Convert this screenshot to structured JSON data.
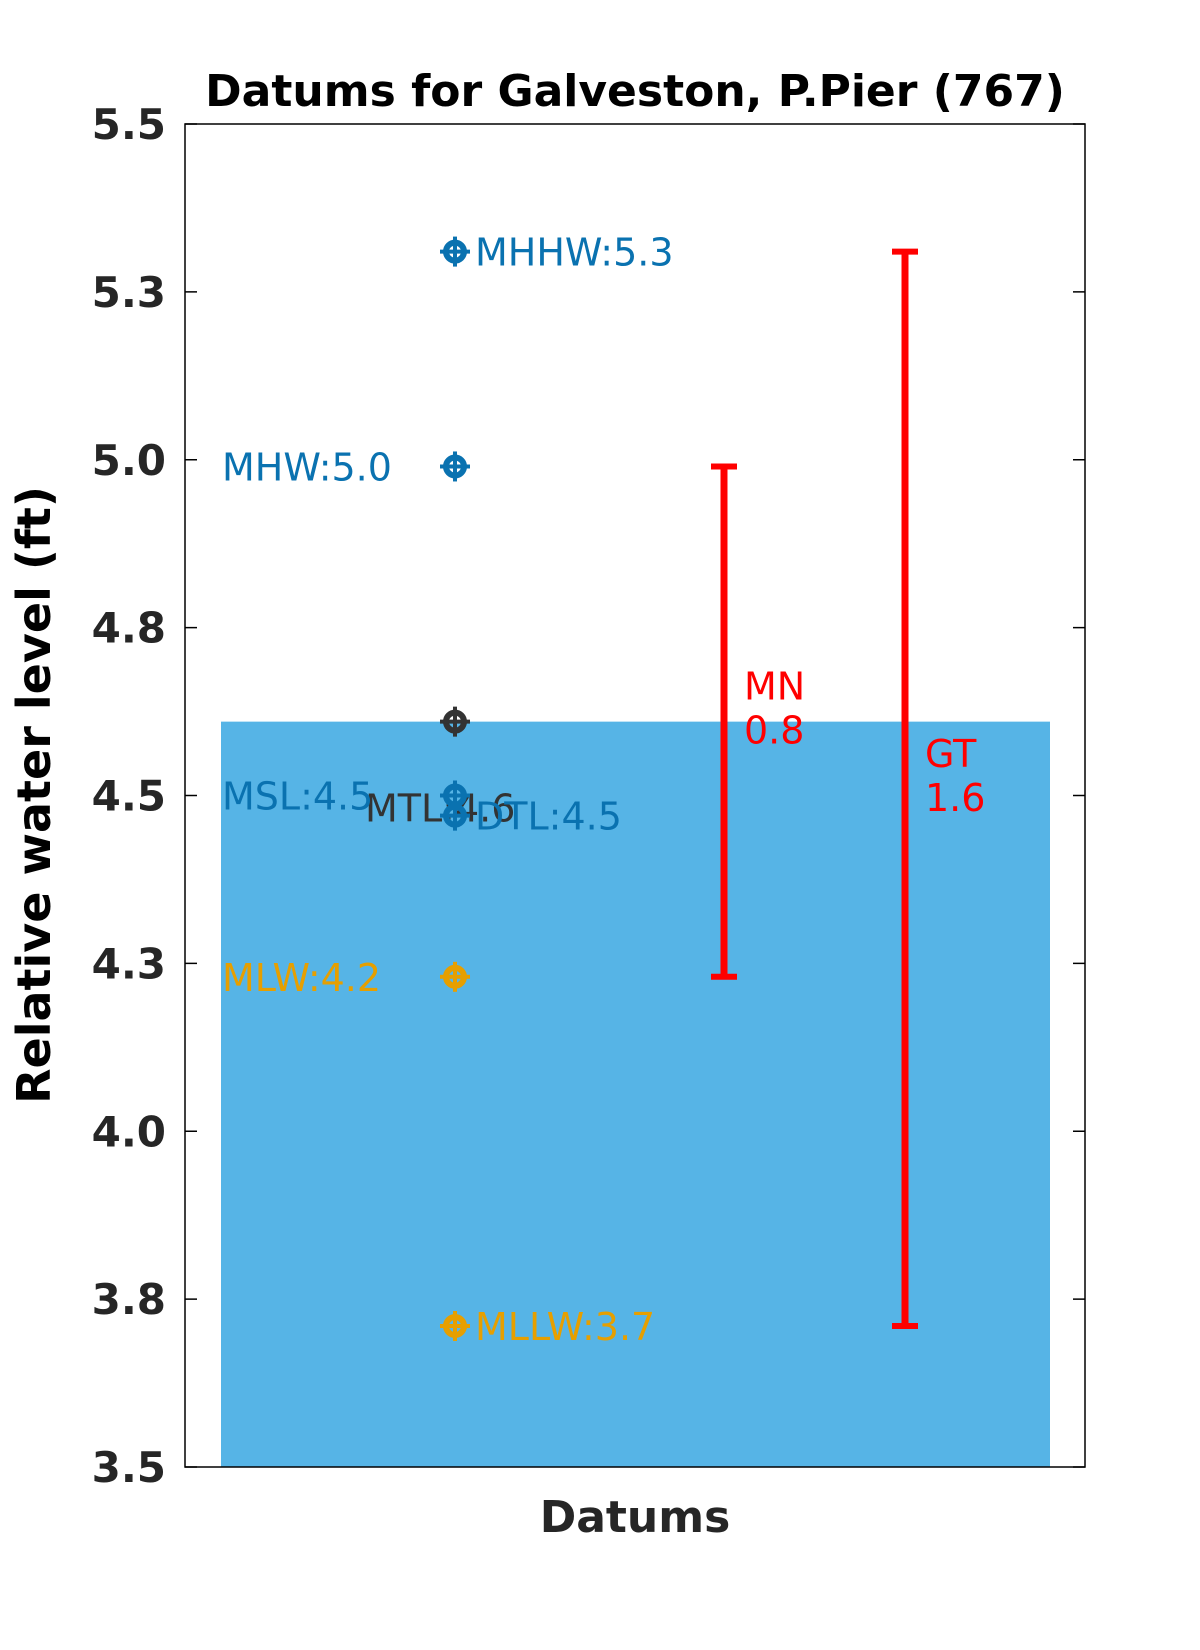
{
  "chart_data": {
    "type": "bar",
    "title": "Datums for Galveston, P.Pier (767)",
    "xlabel": "Datums",
    "ylabel": "Relative water level (ft)",
    "ylim": [
      3.5,
      5.5
    ],
    "yticks": [
      3.5,
      3.75,
      4.0,
      4.25,
      4.5,
      4.75,
      5.0,
      5.25,
      5.5
    ],
    "ytick_labels": [
      "3.5",
      "3.8",
      "4.0",
      "4.3",
      "4.5",
      "4.8",
      "5.0",
      "5.3",
      "5.5"
    ],
    "grid": false,
    "bar": {
      "value": 4.61,
      "color": "#56b4e6"
    },
    "datums": [
      {
        "label": "MHHW:5.3",
        "value": 5.31,
        "color": "#0a72b0",
        "label_side": "right"
      },
      {
        "label": "MHW:5.0",
        "value": 4.99,
        "color": "#0a72b0",
        "label_side": "left"
      },
      {
        "label": "MTL:4.6",
        "value": 4.61,
        "color": "#333333",
        "label_side": "center"
      },
      {
        "label": "MSL:4.5",
        "value": 4.5,
        "color": "#0a72b0",
        "label_side": "left"
      },
      {
        "label": "DTL:4.5",
        "value": 4.47,
        "color": "#0a72b0",
        "label_side": "right"
      },
      {
        "label": "MLW:4.2",
        "value": 4.23,
        "color": "#e69f00",
        "label_side": "left"
      },
      {
        "label": "MLLW:3.7",
        "value": 3.71,
        "color": "#e69f00",
        "label_side": "right"
      }
    ],
    "ranges": [
      {
        "name": "MN",
        "value": "0.8",
        "low": 4.23,
        "high": 4.99,
        "color": "#ff0000"
      },
      {
        "name": "GT",
        "value": "1.6",
        "low": 3.71,
        "high": 5.31,
        "color": "#ff0000"
      }
    ]
  }
}
